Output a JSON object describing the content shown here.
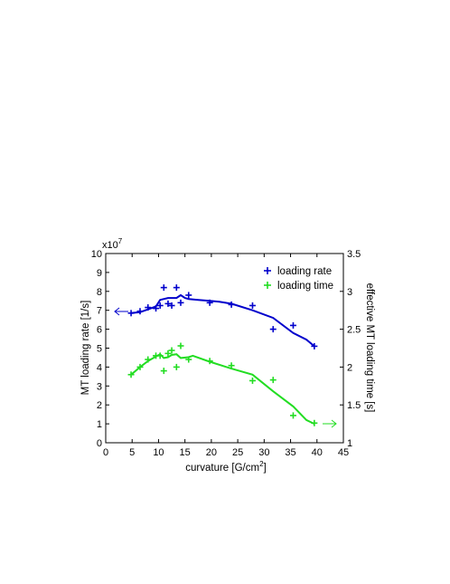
{
  "chart_data": {
    "type": "line",
    "xlabel": "curvature [G/cm",
    "xlabel_sup": "2",
    "xlabel_end": "]",
    "ylabel_left": "MT loading rate [1/s]",
    "ylabel_right": "effective MT loading time [s]",
    "y_left_exponent_base": "x10",
    "y_left_exponent_power": "7",
    "xlim": [
      0,
      45
    ],
    "ylim_left": [
      0,
      10
    ],
    "ylim_right": [
      1,
      3.5
    ],
    "x_ticks": [
      "0",
      "5",
      "10",
      "15",
      "20",
      "25",
      "30",
      "35",
      "40",
      "45"
    ],
    "y_left_ticks": [
      "0",
      "1",
      "2",
      "3",
      "4",
      "5",
      "6",
      "7",
      "8",
      "9",
      "10"
    ],
    "y_right_ticks": [
      "1",
      "1.5",
      "2",
      "2.5",
      "3",
      "3.5"
    ],
    "grid": false,
    "legend_position": "top-right",
    "colors": {
      "rate": "#0000cc",
      "time": "#22dd22"
    },
    "series": [
      {
        "name": "loading rate",
        "axis": "left",
        "color": "#0000cc",
        "points": [
          [
            4.8,
            6.85
          ],
          [
            6.5,
            6.95
          ],
          [
            8,
            7.15
          ],
          [
            9.5,
            7.1
          ],
          [
            10.3,
            7.25
          ],
          [
            11,
            8.2
          ],
          [
            11.8,
            7.35
          ],
          [
            12.5,
            7.25
          ],
          [
            13.4,
            8.2
          ],
          [
            14.2,
            7.4
          ],
          [
            15.7,
            7.8
          ],
          [
            19.7,
            7.4
          ],
          [
            23.8,
            7.3
          ],
          [
            27.8,
            7.25
          ],
          [
            31.7,
            6.0
          ],
          [
            35.5,
            6.2
          ],
          [
            39.5,
            5.1
          ]
        ],
        "fit": [
          [
            4.8,
            6.85
          ],
          [
            6.5,
            6.9
          ],
          [
            8,
            7.05
          ],
          [
            9.5,
            7.2
          ],
          [
            10.3,
            7.55
          ],
          [
            11.8,
            7.65
          ],
          [
            13.4,
            7.65
          ],
          [
            14.2,
            7.8
          ],
          [
            15,
            7.65
          ],
          [
            15.7,
            7.6
          ],
          [
            17.5,
            7.55
          ],
          [
            19.7,
            7.5
          ],
          [
            21.5,
            7.45
          ],
          [
            23.8,
            7.35
          ],
          [
            27.8,
            7.0
          ],
          [
            31.7,
            6.6
          ],
          [
            35.5,
            5.8
          ],
          [
            38,
            5.45
          ],
          [
            39.5,
            5.1
          ]
        ]
      },
      {
        "name": "loading time",
        "axis": "right",
        "color": "#22dd22",
        "points": [
          [
            4.8,
            1.9
          ],
          [
            6.5,
            2.0
          ],
          [
            8,
            2.1
          ],
          [
            9.5,
            2.15
          ],
          [
            10.3,
            2.15
          ],
          [
            11,
            1.95
          ],
          [
            11.8,
            2.18
          ],
          [
            12.5,
            2.22
          ],
          [
            13.4,
            2.0
          ],
          [
            14.2,
            2.28
          ],
          [
            15.7,
            2.1
          ],
          [
            19.7,
            2.08
          ],
          [
            23.8,
            2.02
          ],
          [
            27.8,
            1.82
          ],
          [
            31.7,
            1.83
          ],
          [
            35.5,
            1.36
          ],
          [
            39.5,
            1.26
          ]
        ],
        "fit": [
          [
            4.8,
            1.9
          ],
          [
            6.5,
            2.0
          ],
          [
            8,
            2.08
          ],
          [
            9.5,
            2.14
          ],
          [
            10.3,
            2.17
          ],
          [
            11,
            2.12
          ],
          [
            11.8,
            2.13
          ],
          [
            12.5,
            2.16
          ],
          [
            13.4,
            2.17
          ],
          [
            14.2,
            2.12
          ],
          [
            15.7,
            2.13
          ],
          [
            16.5,
            2.15
          ],
          [
            19.7,
            2.07
          ],
          [
            23.8,
            1.98
          ],
          [
            27.8,
            1.9
          ],
          [
            31.7,
            1.68
          ],
          [
            35.5,
            1.48
          ],
          [
            38,
            1.3
          ],
          [
            39.5,
            1.25
          ]
        ]
      }
    ]
  }
}
